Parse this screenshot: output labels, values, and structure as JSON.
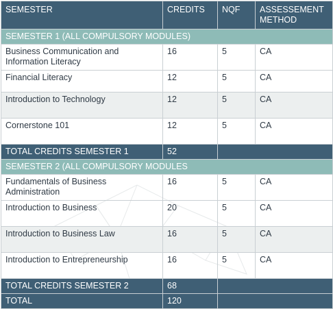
{
  "table": {
    "headers": {
      "semester": "SEMESTER",
      "credits": "CREDITS",
      "nqf": "NQF",
      "assessment": "ASSESSEMENT METHOD"
    },
    "semester1": {
      "title": "SEMESTER 1 (ALL COMPULSORY MODULES)",
      "modules": [
        {
          "name": "Business Communication and Information Literacy",
          "credits": "16",
          "nqf": "5",
          "method": "CA"
        },
        {
          "name": "Financial Literacy",
          "credits": "12",
          "nqf": "5",
          "method": "CA"
        },
        {
          "name": "Introduction to Technology",
          "credits": "12",
          "nqf": "5",
          "method": "CA"
        },
        {
          "name": "Cornerstone 101",
          "credits": "12",
          "nqf": "5",
          "method": "CA"
        }
      ],
      "total_label": "TOTAL CREDITS SEMESTER 1",
      "total_value": "52"
    },
    "semester2": {
      "title": "SEMESTER 2 (ALL COMPULSORY MODULES",
      "modules": [
        {
          "name": "Fundamentals of Business Administration",
          "credits": "16",
          "nqf": "5",
          "method": "CA"
        },
        {
          "name": "Introduction to Business",
          "credits": "20",
          "nqf": "5",
          "method": "CA"
        },
        {
          "name": "Introduction to Business Law",
          "credits": "16",
          "nqf": "5",
          "method": "CA"
        },
        {
          "name": "Introduction to Entrepreneurship",
          "credits": "16",
          "nqf": "5",
          "method": "CA"
        }
      ],
      "total_label": "TOTAL CREDITS SEMESTER 2",
      "total_value": "68"
    },
    "grand_total_label": "TOTAL",
    "grand_total_value": "120"
  },
  "colors": {
    "header_bg": "#3f5f75",
    "section_bg": "#8ebbb7",
    "row_shade": "#ecefef",
    "text": "#2f3a45"
  }
}
